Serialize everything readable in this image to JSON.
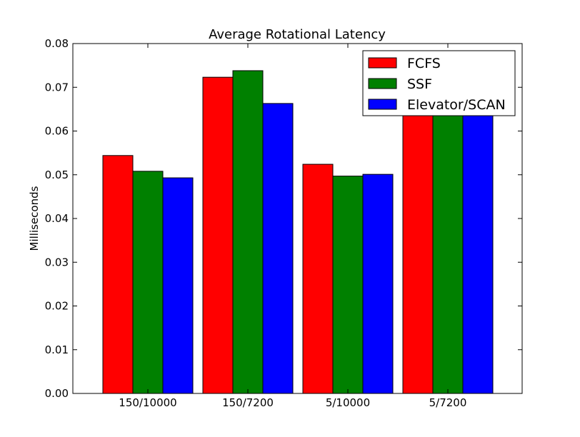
{
  "chart_data": {
    "type": "bar",
    "title": "Average Rotational Latency",
    "xlabel": "",
    "ylabel": "Milliseconds",
    "categories": [
      "150/10000",
      "150/7200",
      "5/10000",
      "5/7200"
    ],
    "series": [
      {
        "name": "FCFS",
        "color": "#ff0000",
        "values": [
          0.0544,
          0.0723,
          0.0524,
          0.0756
        ]
      },
      {
        "name": "SSF",
        "color": "#008000",
        "values": [
          0.0508,
          0.0738,
          0.0497,
          0.0738
        ]
      },
      {
        "name": "Elevator/SCAN",
        "color": "#0000ff",
        "values": [
          0.0493,
          0.0663,
          0.0501,
          0.0735
        ]
      }
    ],
    "ylim": [
      0,
      0.08
    ],
    "yticks": [
      "0.00",
      "0.01",
      "0.02",
      "0.03",
      "0.04",
      "0.05",
      "0.06",
      "0.07",
      "0.08"
    ],
    "grid": false,
    "legend_position": "top-right"
  }
}
